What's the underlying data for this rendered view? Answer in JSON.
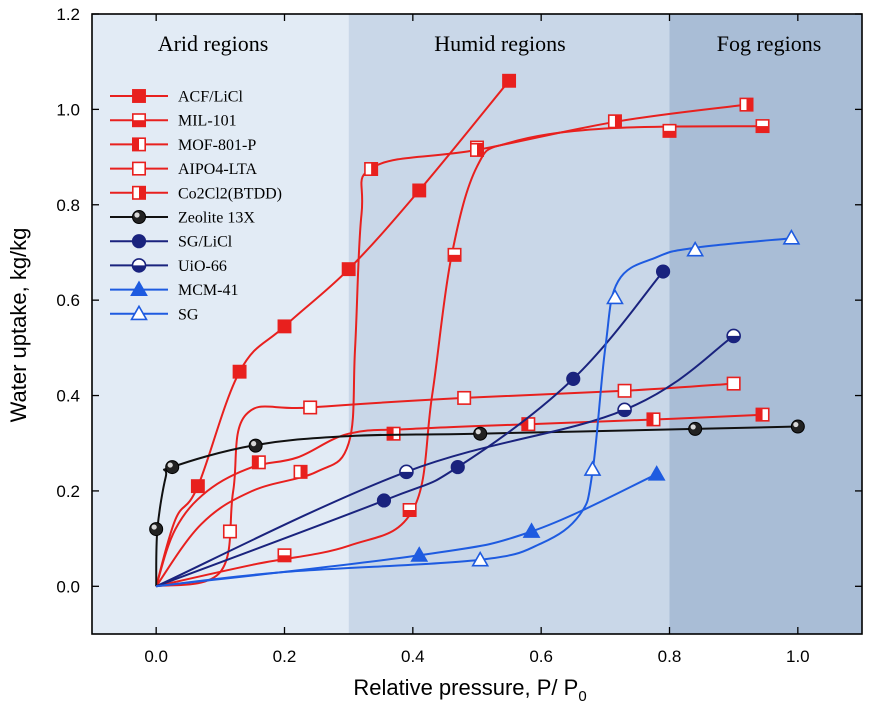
{
  "chart_data": {
    "type": "line",
    "xlabel": "Relative pressure, P/ P0",
    "xlabel_main": "Relative pressure, P/ P",
    "xlabel_sub": "0",
    "ylabel": "Water uptake, kg/kg",
    "xlim": [
      -0.1,
      1.1
    ],
    "ylim": [
      -0.1,
      1.2
    ],
    "xticks": [
      0.0,
      0.2,
      0.4,
      0.6,
      0.8,
      1.0
    ],
    "yticks": [
      0.0,
      0.2,
      0.4,
      0.6,
      0.8,
      1.0,
      1.2
    ],
    "xtick_labels": [
      "0.0",
      "0.2",
      "0.4",
      "0.6",
      "0.8",
      "1.0"
    ],
    "ytick_labels": [
      "0.0",
      "0.2",
      "0.4",
      "0.6",
      "0.8",
      "1.0",
      "1.2"
    ],
    "regions": [
      {
        "label": "Arid regions",
        "x_range": [
          -0.1,
          0.3
        ],
        "color": "#e2ebf5"
      },
      {
        "label": "Humid regions",
        "x_range": [
          0.3,
          0.8
        ],
        "color": "#c9d7e8"
      },
      {
        "label": "Fog regions",
        "x_range": [
          0.8,
          1.1
        ],
        "color": "#a9bdd6"
      }
    ],
    "legend_position": "upper-left",
    "series": [
      {
        "name": "ACF/LiCl",
        "color": "#e8201e",
        "marker": "square-filled",
        "curve": [
          [
            0,
            0
          ],
          [
            0.03,
            0.14
          ],
          [
            0.065,
            0.21
          ],
          [
            0.13,
            0.45
          ],
          [
            0.2,
            0.545
          ],
          [
            0.3,
            0.665
          ],
          [
            0.41,
            0.83
          ],
          [
            0.55,
            1.06
          ]
        ],
        "markers": [
          [
            0.065,
            0.21
          ],
          [
            0.13,
            0.45
          ],
          [
            0.2,
            0.545
          ],
          [
            0.3,
            0.665
          ],
          [
            0.41,
            0.83
          ],
          [
            0.55,
            1.06
          ]
        ]
      },
      {
        "name": "MIL-101",
        "color": "#e8201e",
        "marker": "square-bottom-half",
        "curve": [
          [
            0,
            0
          ],
          [
            0.15,
            0.045
          ],
          [
            0.3,
            0.085
          ],
          [
            0.4,
            0.16
          ],
          [
            0.43,
            0.4
          ],
          [
            0.46,
            0.69
          ],
          [
            0.5,
            0.88
          ],
          [
            0.55,
            0.93
          ],
          [
            0.7,
            0.96
          ],
          [
            0.95,
            0.965
          ]
        ],
        "markers": [
          [
            0.2,
            0.065
          ],
          [
            0.395,
            0.16
          ],
          [
            0.465,
            0.695
          ],
          [
            0.5,
            0.92
          ],
          [
            0.8,
            0.955
          ],
          [
            0.945,
            0.965
          ]
        ]
      },
      {
        "name": "MOF-801-P",
        "color": "#e8201e",
        "marker": "square-left-half",
        "curve": [
          [
            0,
            0
          ],
          [
            0.03,
            0.12
          ],
          [
            0.08,
            0.2
          ],
          [
            0.15,
            0.25
          ],
          [
            0.22,
            0.27
          ],
          [
            0.3,
            0.32
          ],
          [
            0.4,
            0.33
          ],
          [
            0.58,
            0.34
          ],
          [
            0.78,
            0.35
          ],
          [
            0.95,
            0.36
          ]
        ],
        "markers": [
          [
            0.16,
            0.26
          ],
          [
            0.37,
            0.32
          ],
          [
            0.58,
            0.34
          ],
          [
            0.775,
            0.35
          ],
          [
            0.945,
            0.36
          ]
        ]
      },
      {
        "name": "AIPO4-LTA",
        "color": "#e8201e",
        "marker": "square-open",
        "curve": [
          [
            0,
            0
          ],
          [
            0.1,
            0.03
          ],
          [
            0.12,
            0.2
          ],
          [
            0.14,
            0.36
          ],
          [
            0.24,
            0.375
          ],
          [
            0.48,
            0.395
          ],
          [
            0.73,
            0.41
          ],
          [
            0.9,
            0.425
          ]
        ],
        "markers": [
          [
            0.115,
            0.115
          ],
          [
            0.24,
            0.375
          ],
          [
            0.48,
            0.395
          ],
          [
            0.73,
            0.41
          ],
          [
            0.9,
            0.425
          ]
        ]
      },
      {
        "name": "Co2Cl2(BTDD)",
        "color": "#e8201e",
        "marker": "square-right-half",
        "curve": [
          [
            0,
            0
          ],
          [
            0.07,
            0.13
          ],
          [
            0.15,
            0.2
          ],
          [
            0.25,
            0.24
          ],
          [
            0.3,
            0.3
          ],
          [
            0.31,
            0.5
          ],
          [
            0.32,
            0.78
          ],
          [
            0.34,
            0.88
          ],
          [
            0.5,
            0.915
          ],
          [
            0.72,
            0.975
          ],
          [
            0.92,
            1.01
          ]
        ],
        "markers": [
          [
            0.225,
            0.24
          ],
          [
            0.335,
            0.875
          ],
          [
            0.5,
            0.915
          ],
          [
            0.715,
            0.975
          ],
          [
            0.92,
            1.01
          ]
        ]
      },
      {
        "name": "Zeolite 13X",
        "color": "#111111",
        "marker": "circle-shaded",
        "curve": [
          [
            0,
            0
          ],
          [
            0.002,
            0.12
          ],
          [
            0.015,
            0.23
          ],
          [
            0.025,
            0.25
          ],
          [
            0.15,
            0.295
          ],
          [
            0.3,
            0.315
          ],
          [
            0.5,
            0.32
          ],
          [
            0.84,
            0.33
          ],
          [
            1.0,
            0.335
          ]
        ],
        "markers": [
          [
            0.0,
            0.12
          ],
          [
            0.025,
            0.25
          ],
          [
            0.155,
            0.295
          ],
          [
            0.505,
            0.32
          ],
          [
            0.84,
            0.33
          ],
          [
            1.0,
            0.335
          ]
        ]
      },
      {
        "name": "SG/LiCl",
        "color": "#1a237e",
        "marker": "circle-filled",
        "curve": [
          [
            0,
            0
          ],
          [
            0.355,
            0.18
          ],
          [
            0.47,
            0.25
          ],
          [
            0.65,
            0.435
          ],
          [
            0.79,
            0.66
          ]
        ],
        "markers": [
          [
            0.355,
            0.18
          ],
          [
            0.47,
            0.25
          ],
          [
            0.65,
            0.435
          ],
          [
            0.79,
            0.66
          ]
        ]
      },
      {
        "name": "UiO-66",
        "color": "#1a237e",
        "marker": "circle-half",
        "curve": [
          [
            0,
            0
          ],
          [
            0.39,
            0.24
          ],
          [
            0.73,
            0.37
          ],
          [
            0.9,
            0.525
          ]
        ],
        "markers": [
          [
            0.39,
            0.24
          ],
          [
            0.73,
            0.37
          ],
          [
            0.9,
            0.525
          ]
        ]
      },
      {
        "name": "MCM-41",
        "color": "#1e5be0",
        "marker": "triangle-filled",
        "curve": [
          [
            0,
            0
          ],
          [
            0.41,
            0.065
          ],
          [
            0.585,
            0.115
          ],
          [
            0.78,
            0.235
          ]
        ],
        "markers": [
          [
            0.41,
            0.065
          ],
          [
            0.585,
            0.115
          ],
          [
            0.78,
            0.235
          ]
        ]
      },
      {
        "name": "SG",
        "color": "#1e5be0",
        "marker": "triangle-open",
        "curve": [
          [
            0,
            0
          ],
          [
            0.2,
            0.03
          ],
          [
            0.5,
            0.055
          ],
          [
            0.6,
            0.09
          ],
          [
            0.66,
            0.15
          ],
          [
            0.68,
            0.24
          ],
          [
            0.7,
            0.5
          ],
          [
            0.72,
            0.64
          ],
          [
            0.78,
            0.69
          ],
          [
            0.84,
            0.71
          ],
          [
            0.99,
            0.73
          ]
        ],
        "markers": [
          [
            0.505,
            0.055
          ],
          [
            0.68,
            0.245
          ],
          [
            0.715,
            0.605
          ],
          [
            0.84,
            0.705
          ],
          [
            0.99,
            0.73
          ]
        ]
      }
    ]
  }
}
